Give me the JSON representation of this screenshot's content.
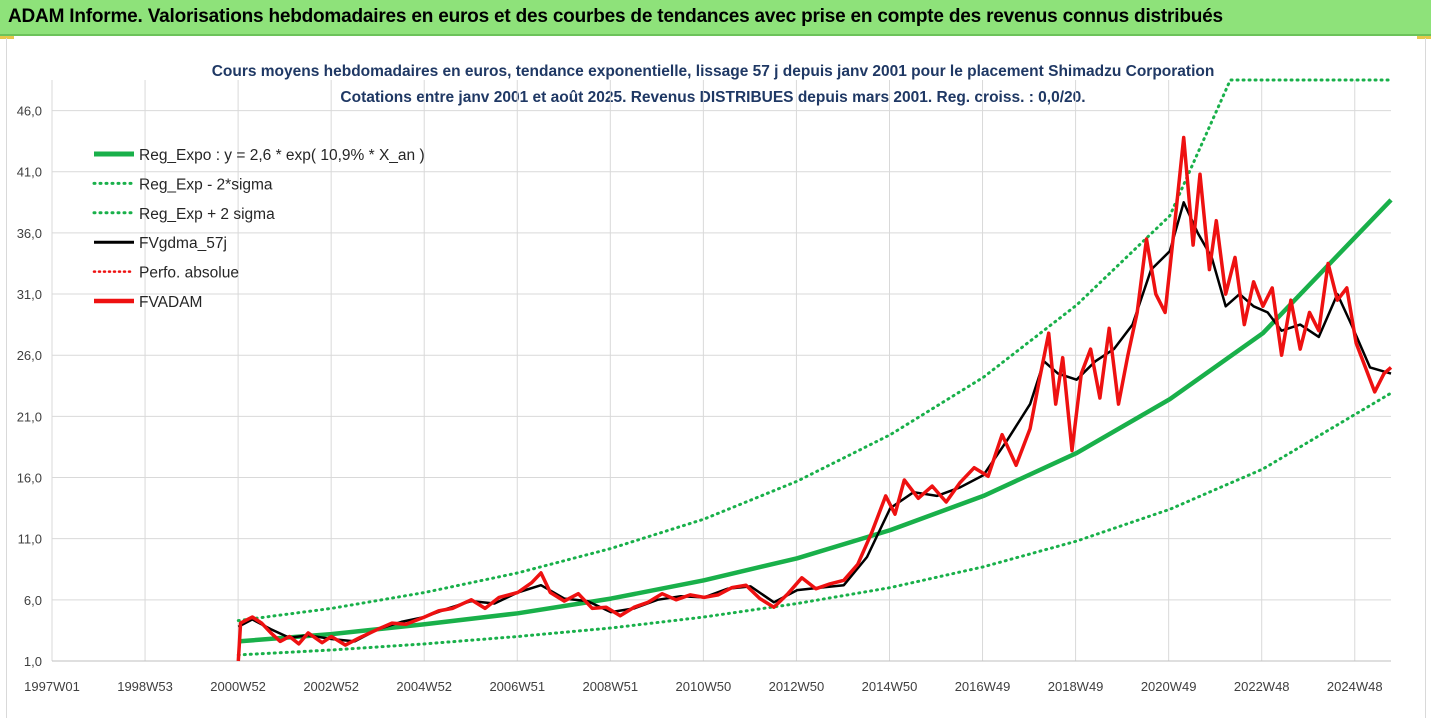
{
  "banner": {
    "title": "ADAM Informe. Valorisations hebdomadaires en euros et des courbes de tendances avec prise en compte des revenus connus distribués"
  },
  "colors": {
    "banner_bg": "#8ee27a",
    "green": "#19b04a",
    "red": "#ee1111",
    "black": "#000000",
    "grid": "#d9d9d9"
  },
  "chart_data": {
    "type": "line",
    "title": "Cours moyens hebdomadaires en euros, tendance exponentielle, lissage 57 j depuis janv 2001 pour le placement Shimadzu Corporation",
    "subtitle": "Cotations entre janv 2001 et août 2025.  Revenus DISTRIBUES depuis mars 2001. Reg. croiss. : 0,0/20.",
    "xlabel": "",
    "ylabel": "",
    "x_tick_labels": [
      "1997W01",
      "1998W53",
      "2000W52",
      "2002W52",
      "2004W52",
      "2006W51",
      "2008W51",
      "2010W50",
      "2012W50",
      "2014W50",
      "2016W49",
      "2018W49",
      "2020W49",
      "2022W48",
      "2024W48"
    ],
    "xlim": [
      1997.0,
      2025.75
    ],
    "y_tick_labels": [
      "1,0",
      "6,0",
      "11,0",
      "16,0",
      "21,0",
      "26,0",
      "31,0",
      "36,0",
      "41,0",
      "46,0"
    ],
    "ylim": [
      1,
      48.5
    ],
    "grid": true,
    "legend_position": "top-left",
    "legend": [
      {
        "label": "Reg_Expo : y = 2,6 * exp( 10,9% *  X_an )",
        "color": "#19b04a",
        "style": "solid-thick"
      },
      {
        "label": "Reg_Exp - 2*sigma",
        "color": "#19b04a",
        "style": "dotted"
      },
      {
        "label": "Reg_Exp + 2 sigma",
        "color": "#19b04a",
        "style": "dotted"
      },
      {
        "label": "FVgdma_57j",
        "color": "#000000",
        "style": "solid"
      },
      {
        "label": "Perfo. absolue",
        "color": "#ee1111",
        "style": "dotted"
      },
      {
        "label": "FVADAM",
        "color": "#ee1111",
        "style": "solid-thick"
      }
    ],
    "series": [
      {
        "name": "Reg_Expo : y = 2,6 * exp( 10,9% *  X_an )",
        "x": [
          2001.0,
          2003.0,
          2005.0,
          2007.0,
          2009.0,
          2011.0,
          2013.0,
          2015.0,
          2017.0,
          2019.0,
          2021.0,
          2023.0,
          2025.75
        ],
        "values": [
          2.6,
          3.2,
          4.0,
          4.9,
          6.1,
          7.6,
          9.4,
          11.7,
          14.5,
          18.0,
          22.4,
          27.8,
          38.7
        ]
      },
      {
        "name": "Reg_Exp - 2*sigma",
        "x": [
          2001.0,
          2003.0,
          2005.0,
          2007.0,
          2009.0,
          2011.0,
          2013.0,
          2015.0,
          2017.0,
          2019.0,
          2021.0,
          2023.0,
          2025.75
        ],
        "values": [
          1.5,
          1.9,
          2.4,
          3.0,
          3.7,
          4.6,
          5.7,
          7.0,
          8.7,
          10.8,
          13.4,
          16.7,
          22.9
        ]
      },
      {
        "name": "Reg_Exp + 2 sigma",
        "x": [
          2001.0,
          2003.0,
          2005.0,
          2007.0,
          2009.0,
          2011.0,
          2013.0,
          2015.0,
          2017.0,
          2019.0,
          2021.0,
          2022.3,
          2025.75
        ],
        "values": [
          4.3,
          5.3,
          6.6,
          8.2,
          10.2,
          12.6,
          15.7,
          19.5,
          24.2,
          30.1,
          37.4,
          48.5,
          48.5
        ]
      },
      {
        "name": "FVgdma_57j",
        "x": [
          2001.0,
          2001.3,
          2001.7,
          2002.1,
          2002.5,
          2003.0,
          2003.5,
          2004.0,
          2004.5,
          2005.0,
          2005.5,
          2006.0,
          2006.5,
          2007.0,
          2007.5,
          2008.0,
          2008.5,
          2009.0,
          2009.5,
          2010.0,
          2010.5,
          2011.0,
          2011.5,
          2012.0,
          2012.5,
          2013.0,
          2013.5,
          2014.0,
          2014.5,
          2015.0,
          2015.5,
          2016.0,
          2016.5,
          2017.0,
          2017.5,
          2018.0,
          2018.3,
          2018.6,
          2019.0,
          2019.4,
          2019.8,
          2020.2,
          2020.6,
          2021.0,
          2021.3,
          2021.6,
          2021.9,
          2022.2,
          2022.5,
          2022.8,
          2023.1,
          2023.4,
          2023.8,
          2024.2,
          2024.6,
          2024.9,
          2025.3,
          2025.75
        ],
        "values": [
          3.8,
          4.4,
          3.6,
          2.9,
          3.1,
          2.8,
          2.6,
          3.6,
          4.2,
          4.6,
          5.3,
          5.9,
          5.7,
          6.6,
          7.2,
          6.1,
          5.9,
          5.0,
          5.3,
          6.0,
          6.3,
          6.2,
          6.9,
          7.1,
          5.8,
          6.8,
          7.0,
          7.2,
          9.5,
          13.5,
          14.8,
          14.5,
          15.2,
          16.2,
          19.0,
          22.0,
          25.5,
          24.5,
          24.0,
          25.5,
          26.5,
          28.5,
          33.0,
          34.5,
          38.5,
          36.0,
          34.0,
          30.0,
          31.0,
          30.0,
          29.5,
          28.0,
          28.5,
          27.5,
          31.0,
          28.5,
          25.0,
          24.5
        ]
      },
      {
        "name": "FVADAM",
        "x": [
          2001.0,
          2001.05,
          2001.3,
          2001.5,
          2001.7,
          2001.9,
          2002.1,
          2002.3,
          2002.5,
          2002.8,
          2003.0,
          2003.3,
          2003.6,
          2004.0,
          2004.3,
          2004.6,
          2005.0,
          2005.3,
          2005.6,
          2006.0,
          2006.3,
          2006.6,
          2007.0,
          2007.3,
          2007.5,
          2007.7,
          2008.0,
          2008.3,
          2008.6,
          2008.9,
          2009.2,
          2009.5,
          2009.8,
          2010.1,
          2010.4,
          2010.7,
          2011.0,
          2011.3,
          2011.6,
          2011.9,
          2012.2,
          2012.5,
          2012.8,
          2013.1,
          2013.4,
          2013.7,
          2014.0,
          2014.3,
          2014.6,
          2014.9,
          2015.1,
          2015.3,
          2015.6,
          2015.9,
          2016.2,
          2016.5,
          2016.8,
          2017.1,
          2017.4,
          2017.7,
          2018.0,
          2018.2,
          2018.4,
          2018.55,
          2018.7,
          2018.9,
          2019.1,
          2019.3,
          2019.5,
          2019.7,
          2019.9,
          2020.1,
          2020.3,
          2020.5,
          2020.7,
          2020.9,
          2021.1,
          2021.3,
          2021.5,
          2021.65,
          2021.85,
          2022.0,
          2022.2,
          2022.4,
          2022.6,
          2022.8,
          2023.0,
          2023.2,
          2023.4,
          2023.6,
          2023.8,
          2024.0,
          2024.2,
          2024.4,
          2024.6,
          2024.8,
          2025.0,
          2025.2,
          2025.4,
          2025.6,
          2025.75
        ],
        "values": [
          1.0,
          4.1,
          4.6,
          4.1,
          3.3,
          2.6,
          3.0,
          2.4,
          3.3,
          2.5,
          3.0,
          2.3,
          2.9,
          3.6,
          4.1,
          4.0,
          4.6,
          5.1,
          5.3,
          6.0,
          5.3,
          6.2,
          6.6,
          7.4,
          8.2,
          6.6,
          5.9,
          6.5,
          5.3,
          5.4,
          4.7,
          5.4,
          5.8,
          6.5,
          6.0,
          6.4,
          6.2,
          6.4,
          7.0,
          7.2,
          6.1,
          5.4,
          6.5,
          7.8,
          6.9,
          7.3,
          7.6,
          8.9,
          11.5,
          14.5,
          13.0,
          15.8,
          14.3,
          15.3,
          14.0,
          15.6,
          16.8,
          16.1,
          19.5,
          17.0,
          20.0,
          24.0,
          27.8,
          22.0,
          25.8,
          18.2,
          24.5,
          26.5,
          22.5,
          28.2,
          22.0,
          26.0,
          29.5,
          35.5,
          31.0,
          29.5,
          36.5,
          43.8,
          35.0,
          40.8,
          33.0,
          37.0,
          31.0,
          34.0,
          28.5,
          32.0,
          30.0,
          31.5,
          26.0,
          30.5,
          26.5,
          29.5,
          28.0,
          33.5,
          30.5,
          31.5,
          27.0,
          25.0,
          23.0,
          24.5,
          25.0
        ]
      }
    ]
  }
}
